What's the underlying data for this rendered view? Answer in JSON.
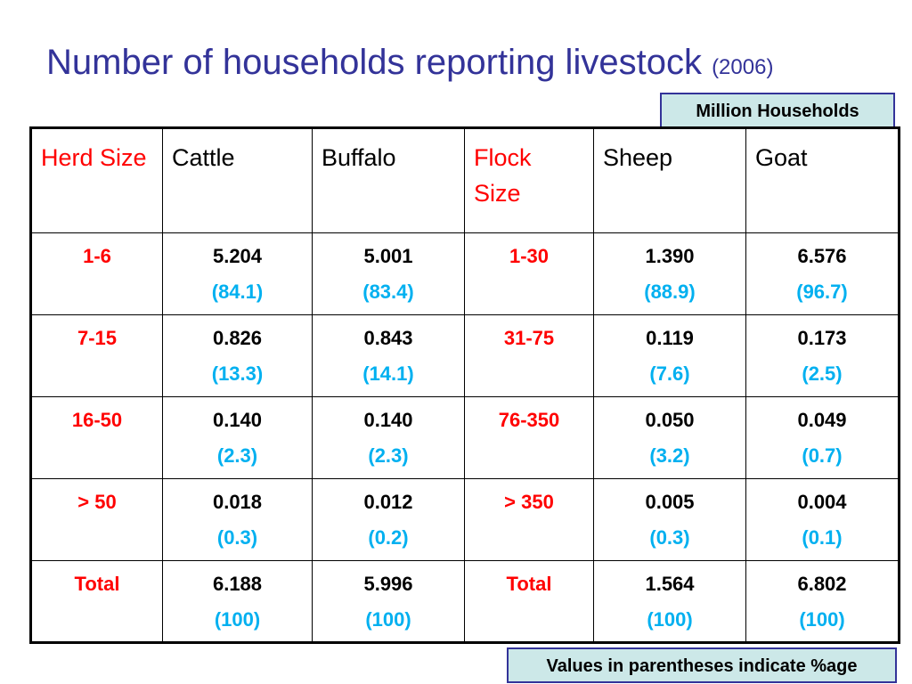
{
  "title": {
    "main": "Number of households reporting livestock",
    "year": "(2006)"
  },
  "unit_label": "Million Households",
  "note": "Values in parentheses indicate %age",
  "headers": {
    "herd_size": "Herd Size",
    "cattle": "Cattle",
    "buffalo": "Buffalo",
    "flock_size": "Flock Size",
    "sheep": "Sheep",
    "goat": "Goat"
  },
  "rows": [
    {
      "herd": "1-6",
      "cattle": {
        "value": "5.204",
        "pct": "(84.1)"
      },
      "buffalo": {
        "value": "5.001",
        "pct": "(83.4)"
      },
      "flock": "1-30",
      "sheep": {
        "value": "1.390",
        "pct": "(88.9)"
      },
      "goat": {
        "value": "6.576",
        "pct": "(96.7)"
      }
    },
    {
      "herd": "7-15",
      "cattle": {
        "value": "0.826",
        "pct": "(13.3)"
      },
      "buffalo": {
        "value": "0.843",
        "pct": "(14.1)"
      },
      "flock": "31-75",
      "sheep": {
        "value": "0.119",
        "pct": "(7.6)"
      },
      "goat": {
        "value": "0.173",
        "pct": "(2.5)"
      }
    },
    {
      "herd": "16-50",
      "cattle": {
        "value": "0.140",
        "pct": "(2.3)"
      },
      "buffalo": {
        "value": "0.140",
        "pct": "(2.3)"
      },
      "flock": "76-350",
      "sheep": {
        "value": "0.050",
        "pct": "(3.2)"
      },
      "goat": {
        "value": "0.049",
        "pct": "(0.7)"
      }
    },
    {
      "herd": "> 50",
      "cattle": {
        "value": "0.018",
        "pct": "(0.3)"
      },
      "buffalo": {
        "value": "0.012",
        "pct": "(0.2)"
      },
      "flock": "> 350",
      "sheep": {
        "value": "0.005",
        "pct": "(0.3)"
      },
      "goat": {
        "value": "0.004",
        "pct": "(0.1)"
      }
    },
    {
      "herd": "Total",
      "cattle": {
        "value": "6.188",
        "pct": "(100)"
      },
      "buffalo": {
        "value": "5.996",
        "pct": "(100)"
      },
      "flock": "Total",
      "sheep": {
        "value": "1.564",
        "pct": "(100)"
      },
      "goat": {
        "value": "6.802",
        "pct": "(100)"
      }
    }
  ],
  "colors": {
    "title": "#333399",
    "size_label": "#ff0000",
    "percentage": "#00b0f0",
    "box_fill": "#cce8e8"
  }
}
